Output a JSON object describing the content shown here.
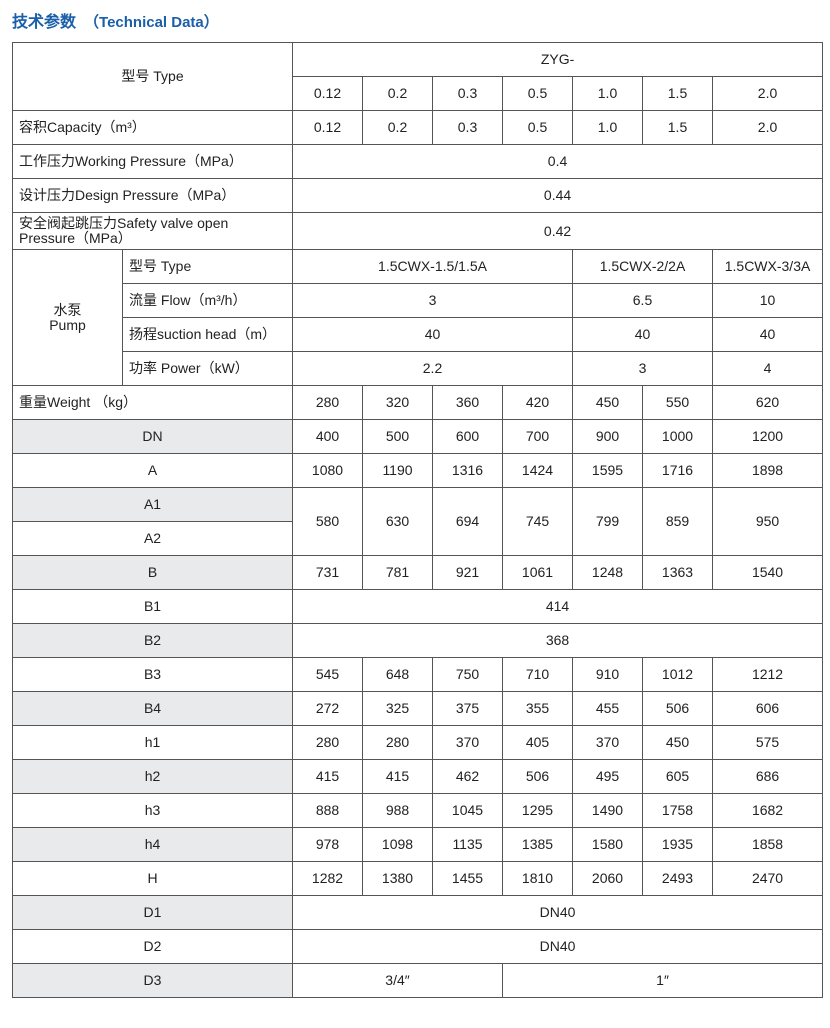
{
  "header": {
    "title_cn": "技术参数",
    "title_en": "（Technical Data）"
  },
  "table": {
    "model_label": "型号 Type",
    "series": "ZYG-",
    "models": [
      "0.12",
      "0.2",
      "0.3",
      "0.5",
      "1.0",
      "1.5",
      "2.0"
    ],
    "rows": [
      {
        "label": "容积Capacity（m³）",
        "cells": [
          "0.12",
          "0.2",
          "0.3",
          "0.5",
          "1.0",
          "1.5",
          "2.0"
        ]
      },
      {
        "label": "工作压力Working Pressure（MPa）",
        "cells": [
          "0.4"
        ]
      },
      {
        "label": "设计压力Design Pressure（MPa）",
        "cells": [
          "0.44"
        ]
      },
      {
        "label": "安全阀起跳压力Safety valve open Pressure（MPa）",
        "cells": [
          "0.42"
        ]
      }
    ],
    "pump": {
      "label": [
        "水泵",
        "Pump"
      ],
      "rows": [
        {
          "label": "型号 Type",
          "cells": [
            "1.5CWX-1.5/1.5A",
            "1.5CWX-2/2A",
            "1.5CWX-3/3A"
          ]
        },
        {
          "label": "流量 Flow（m³/h）",
          "cells": [
            "3",
            "6.5",
            "10"
          ]
        },
        {
          "label": "扬程suction head（m）",
          "cells": [
            "40",
            "40",
            "40"
          ]
        },
        {
          "label": "功率 Power（kW）",
          "cells": [
            "2.2",
            "3",
            "4"
          ]
        }
      ]
    },
    "weight": {
      "label": "重量Weight （kg）",
      "cells": [
        "280",
        "320",
        "360",
        "420",
        "450",
        "550",
        "620"
      ]
    },
    "dimensions": [
      {
        "label": "DN",
        "cells": [
          "400",
          "500",
          "600",
          "700",
          "900",
          "1000",
          "1200"
        ]
      },
      {
        "label": "A",
        "cells": [
          "1080",
          "1190",
          "1316",
          "1424",
          "1595",
          "1716",
          "1898"
        ]
      },
      {
        "label": "A1",
        "cells": [
          "580",
          "630",
          "694",
          "745",
          "799",
          "859",
          "950"
        ]
      },
      {
        "label": "A2",
        "cells": []
      },
      {
        "label": "B",
        "cells": [
          "731",
          "781",
          "921",
          "1061",
          "1248",
          "1363",
          "1540"
        ]
      },
      {
        "label": "B1",
        "cells": [
          "414"
        ]
      },
      {
        "label": "B2",
        "cells": [
          "368"
        ]
      },
      {
        "label": "B3",
        "cells": [
          "545",
          "648",
          "750",
          "710",
          "910",
          "1012",
          "1212"
        ]
      },
      {
        "label": "B4",
        "cells": [
          "272",
          "325",
          "375",
          "355",
          "455",
          "506",
          "606"
        ]
      },
      {
        "label": "h1",
        "cells": [
          "280",
          "280",
          "370",
          "405",
          "370",
          "450",
          "575"
        ]
      },
      {
        "label": "h2",
        "cells": [
          "415",
          "415",
          "462",
          "506",
          "495",
          "605",
          "686"
        ]
      },
      {
        "label": "h3",
        "cells": [
          "888",
          "988",
          "1045",
          "1295",
          "1490",
          "1758",
          "1682"
        ]
      },
      {
        "label": "h4",
        "cells": [
          "978",
          "1098",
          "1135",
          "1385",
          "1580",
          "1935",
          "1858"
        ]
      },
      {
        "label": "H",
        "cells": [
          "1282",
          "1380",
          "1455",
          "1810",
          "2060",
          "2493",
          "2470"
        ]
      },
      {
        "label": "D1",
        "cells": [
          "DN40"
        ]
      },
      {
        "label": "D2",
        "cells": [
          "DN40"
        ]
      },
      {
        "label": "D3",
        "cells": [
          "3/4″",
          "1″"
        ]
      }
    ]
  }
}
